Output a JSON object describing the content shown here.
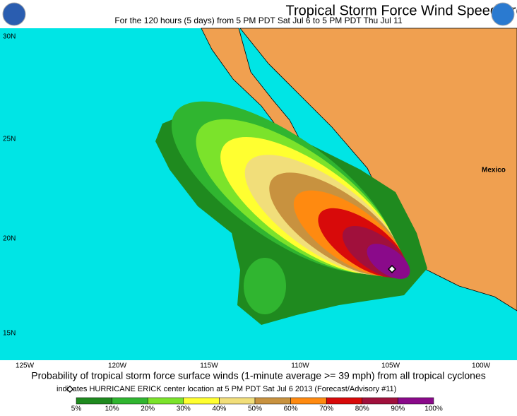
{
  "header": {
    "title": "Tropical Storm Force Wind Speed Probabilities",
    "subtitle": "For the 120 hours (5 days) from 5 PM PDT Sat Jul 6 to 5 PM PDT Thu Jul 11"
  },
  "map": {
    "lat_labels": [
      "30N",
      "25N",
      "20N",
      "15N"
    ],
    "lon_labels": [
      "125W",
      "120W",
      "115W",
      "110W",
      "105W",
      "100W"
    ],
    "place_label": "Mexico"
  },
  "footer": {
    "caption": "Probability of tropical storm force surface winds (1-minute average >= 39 mph) from all tropical cyclones",
    "note": "indicates HURRICANE ERICK center location at 5 PM PDT Sat Jul 6 2013 (Forecast/Advisory #11)"
  },
  "legend": {
    "labels": [
      "5%",
      "10%",
      "20%",
      "30%",
      "40%",
      "50%",
      "60%",
      "70%",
      "80%",
      "90%",
      "100%"
    ],
    "colors": [
      "#1f8a1f",
      "#30b530",
      "#7be32b",
      "#ffff30",
      "#f1de7a",
      "#c8923f",
      "#ff8a10",
      "#d80a0a",
      "#a0103c",
      "#8a0a8a"
    ]
  }
}
